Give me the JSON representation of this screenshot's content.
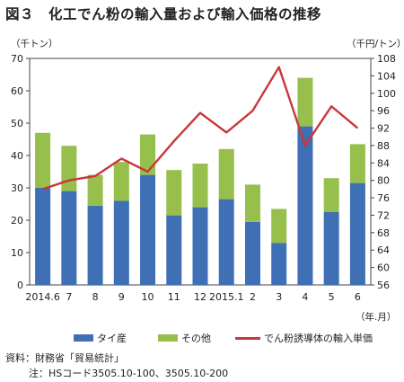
{
  "title": "図３　化工でん粉の輸入量および輸入価格の推移",
  "footnotes": {
    "source": "資料：財務省「貿易統計」",
    "note": "注：HSコード3505.10-100、3505.10-200"
  },
  "chart_data": {
    "type": "bar",
    "stacked": true,
    "categories": [
      "2014.6",
      "7",
      "8",
      "9",
      "10",
      "11",
      "12",
      "2015.1",
      "2",
      "3",
      "4",
      "5",
      "6"
    ],
    "x_unit": "（年.月）",
    "y_left_unit": "（千トン）",
    "y_right_unit": "（千円/トン）",
    "y_left_range": [
      0,
      70
    ],
    "y_left_ticks": [
      0,
      10,
      20,
      30,
      40,
      50,
      60,
      70
    ],
    "y_right_range": [
      56,
      108
    ],
    "y_right_ticks": [
      56,
      60,
      64,
      68,
      72,
      76,
      80,
      84,
      88,
      92,
      96,
      100,
      104,
      108
    ],
    "grid": false,
    "legend_position": "bottom",
    "series": [
      {
        "name": "タイ産",
        "kind": "bar",
        "axis": "left",
        "color": "#3f6fb5",
        "values": [
          30,
          29,
          24.5,
          26,
          34,
          21.5,
          24,
          26.5,
          19.5,
          13,
          49,
          22.5,
          31.5
        ]
      },
      {
        "name": "その他",
        "kind": "bar",
        "axis": "left",
        "color": "#96bf4b",
        "values": [
          17,
          14,
          9.5,
          12,
          12.5,
          14,
          13.5,
          15.5,
          11.5,
          10.5,
          15,
          10.5,
          12
        ]
      },
      {
        "name": "でん粉誘導体の輸入単価",
        "kind": "line",
        "axis": "right",
        "color": "#c8373c",
        "values": [
          78,
          80,
          81,
          85,
          82,
          89,
          95.5,
          91,
          96,
          106,
          88,
          97,
          92
        ]
      }
    ]
  }
}
